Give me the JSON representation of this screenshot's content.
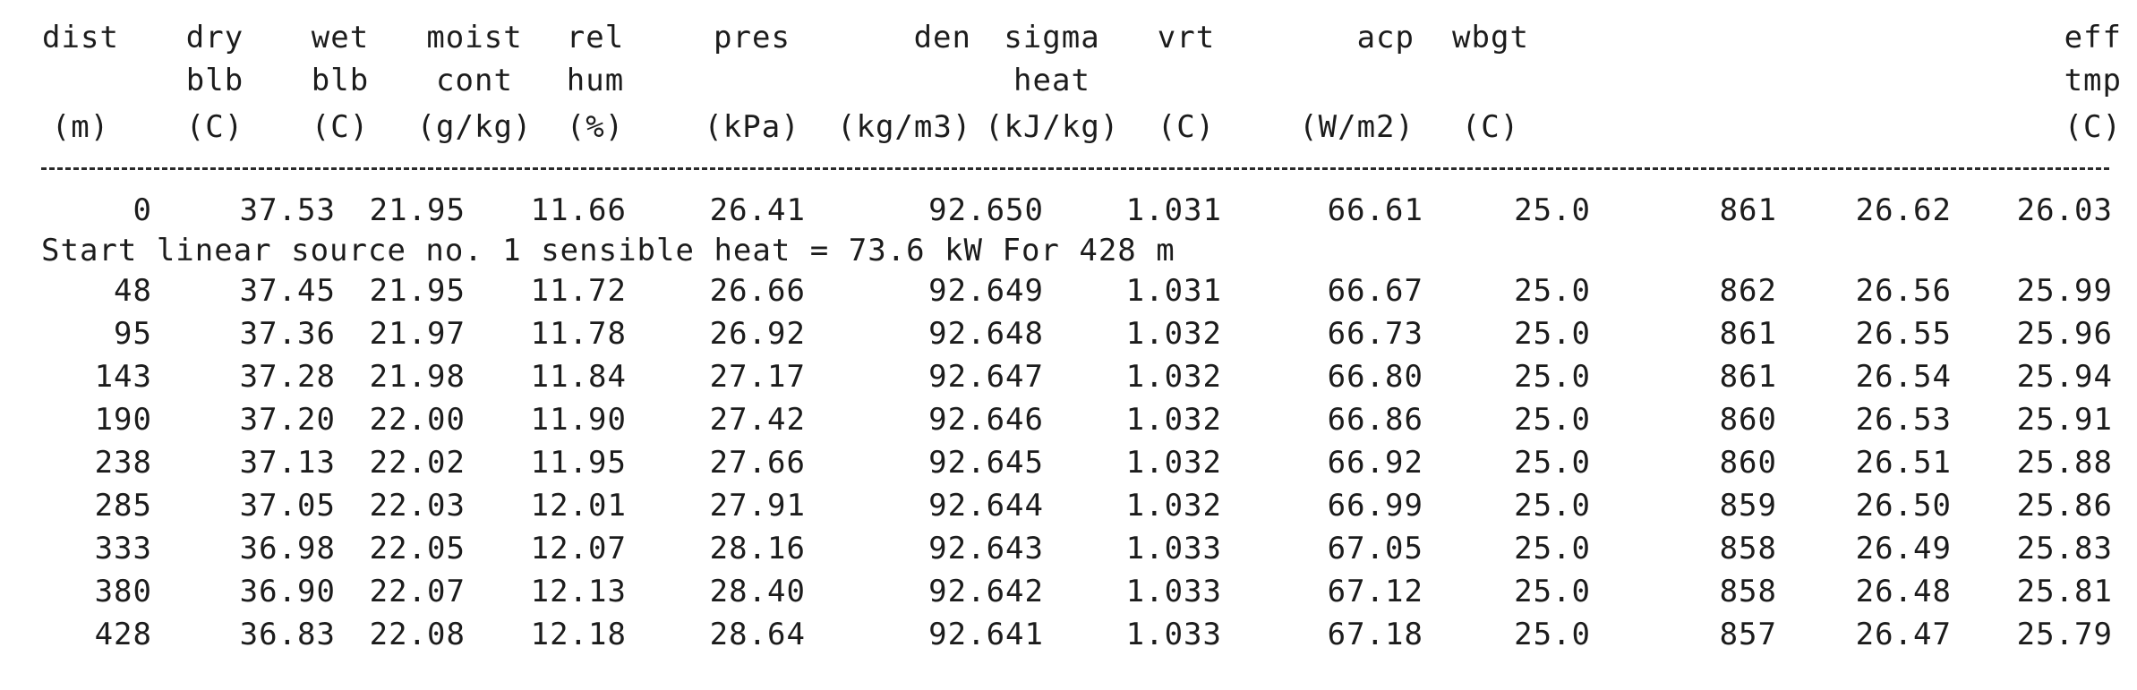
{
  "header": {
    "line1": [
      "dist",
      "dry",
      "wet",
      "moist",
      "rel",
      "pres",
      "den",
      "sigma",
      "vrt",
      "acp",
      "wbgt",
      "eff"
    ],
    "line2": [
      "",
      "blb",
      "blb",
      "cont",
      "hum",
      "",
      "",
      "heat",
      "",
      "",
      "",
      "tmp"
    ],
    "units": [
      "(m)",
      "(C)",
      "(C)",
      "(g/kg)",
      "(%)",
      "(kPa)",
      "(kg/m3)",
      "(kJ/kg)",
      "(C)",
      "(W/m2)",
      "(C)",
      "(C)"
    ]
  },
  "first_row": [
    "0",
    "37.53",
    "21.95",
    "11.66",
    "26.41",
    "92.650",
    "1.031",
    "66.61",
    "25.0",
    "861",
    "26.62",
    "26.03"
  ],
  "note": "Start linear source no. 1 sensible heat = 73.6 kW For 428 m",
  "rows": [
    [
      "48",
      "37.45",
      "21.95",
      "11.72",
      "26.66",
      "92.649",
      "1.031",
      "66.67",
      "25.0",
      "862",
      "26.56",
      "25.99"
    ],
    [
      "95",
      "37.36",
      "21.97",
      "11.78",
      "26.92",
      "92.648",
      "1.032",
      "66.73",
      "25.0",
      "861",
      "26.55",
      "25.96"
    ],
    [
      "143",
      "37.28",
      "21.98",
      "11.84",
      "27.17",
      "92.647",
      "1.032",
      "66.80",
      "25.0",
      "861",
      "26.54",
      "25.94"
    ],
    [
      "190",
      "37.20",
      "22.00",
      "11.90",
      "27.42",
      "92.646",
      "1.032",
      "66.86",
      "25.0",
      "860",
      "26.53",
      "25.91"
    ],
    [
      "238",
      "37.13",
      "22.02",
      "11.95",
      "27.66",
      "92.645",
      "1.032",
      "66.92",
      "25.0",
      "860",
      "26.51",
      "25.88"
    ],
    [
      "285",
      "37.05",
      "22.03",
      "12.01",
      "27.91",
      "92.644",
      "1.032",
      "66.99",
      "25.0",
      "859",
      "26.50",
      "25.86"
    ],
    [
      "333",
      "36.98",
      "22.05",
      "12.07",
      "28.16",
      "92.643",
      "1.033",
      "67.05",
      "25.0",
      "858",
      "26.49",
      "25.83"
    ],
    [
      "380",
      "36.90",
      "22.07",
      "12.13",
      "28.40",
      "92.642",
      "1.033",
      "67.12",
      "25.0",
      "858",
      "26.48",
      "25.81"
    ],
    [
      "428",
      "36.83",
      "22.08",
      "12.18",
      "28.64",
      "92.641",
      "1.033",
      "67.18",
      "25.0",
      "857",
      "26.47",
      "25.79"
    ]
  ]
}
